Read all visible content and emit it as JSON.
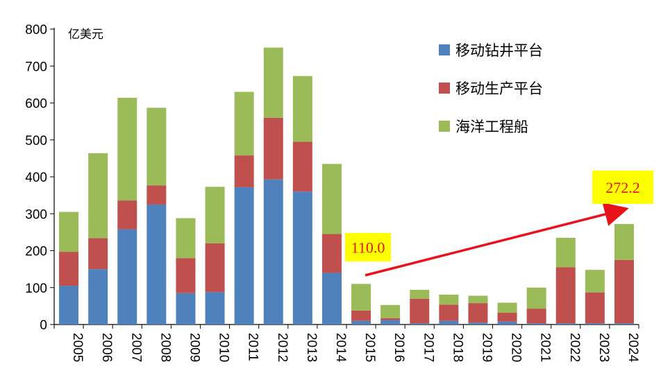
{
  "chart_data": {
    "type": "bar",
    "stacked": true,
    "unit_label": "亿美元",
    "categories": [
      "2005",
      "2006",
      "2007",
      "2008",
      "2009",
      "2010",
      "2011",
      "2012",
      "2013",
      "2014",
      "2015",
      "2016",
      "2017",
      "2018",
      "2019",
      "2020",
      "2021",
      "2022",
      "2023",
      "2024"
    ],
    "series": [
      {
        "name": "移动钻井平台",
        "color": "#4f81bd",
        "values": [
          105,
          150,
          258,
          325,
          85,
          88,
          372,
          393,
          360,
          140,
          10,
          12,
          3,
          10,
          5,
          8,
          3,
          3,
          3,
          3
        ]
      },
      {
        "name": "移动生产平台",
        "color": "#c0504d",
        "values": [
          92,
          84,
          78,
          52,
          95,
          132,
          86,
          167,
          135,
          105,
          28,
          5,
          67,
          44,
          53,
          24,
          40,
          152,
          84,
          172
        ]
      },
      {
        "name": "海洋工程船",
        "color": "#9bbb59",
        "values": [
          108,
          230,
          278,
          210,
          108,
          153,
          172,
          190,
          178,
          190,
          72,
          36,
          24,
          27,
          20,
          27,
          57,
          80,
          61,
          97.2
        ]
      }
    ],
    "ylim": [
      0,
      800
    ],
    "yticks": [
      0,
      100,
      200,
      300,
      400,
      500,
      600,
      700,
      800
    ],
    "legend_position": "top-right",
    "annotations": [
      {
        "text": "110.0",
        "category": "2015",
        "value": 110.0,
        "highlight": "#ffff00"
      },
      {
        "text": "272.2",
        "category": "2024",
        "value": 272.2,
        "highlight": "#ffff00"
      }
    ],
    "trend_arrow": {
      "from": "2015",
      "to": "2024",
      "color": "#e8121a"
    }
  }
}
